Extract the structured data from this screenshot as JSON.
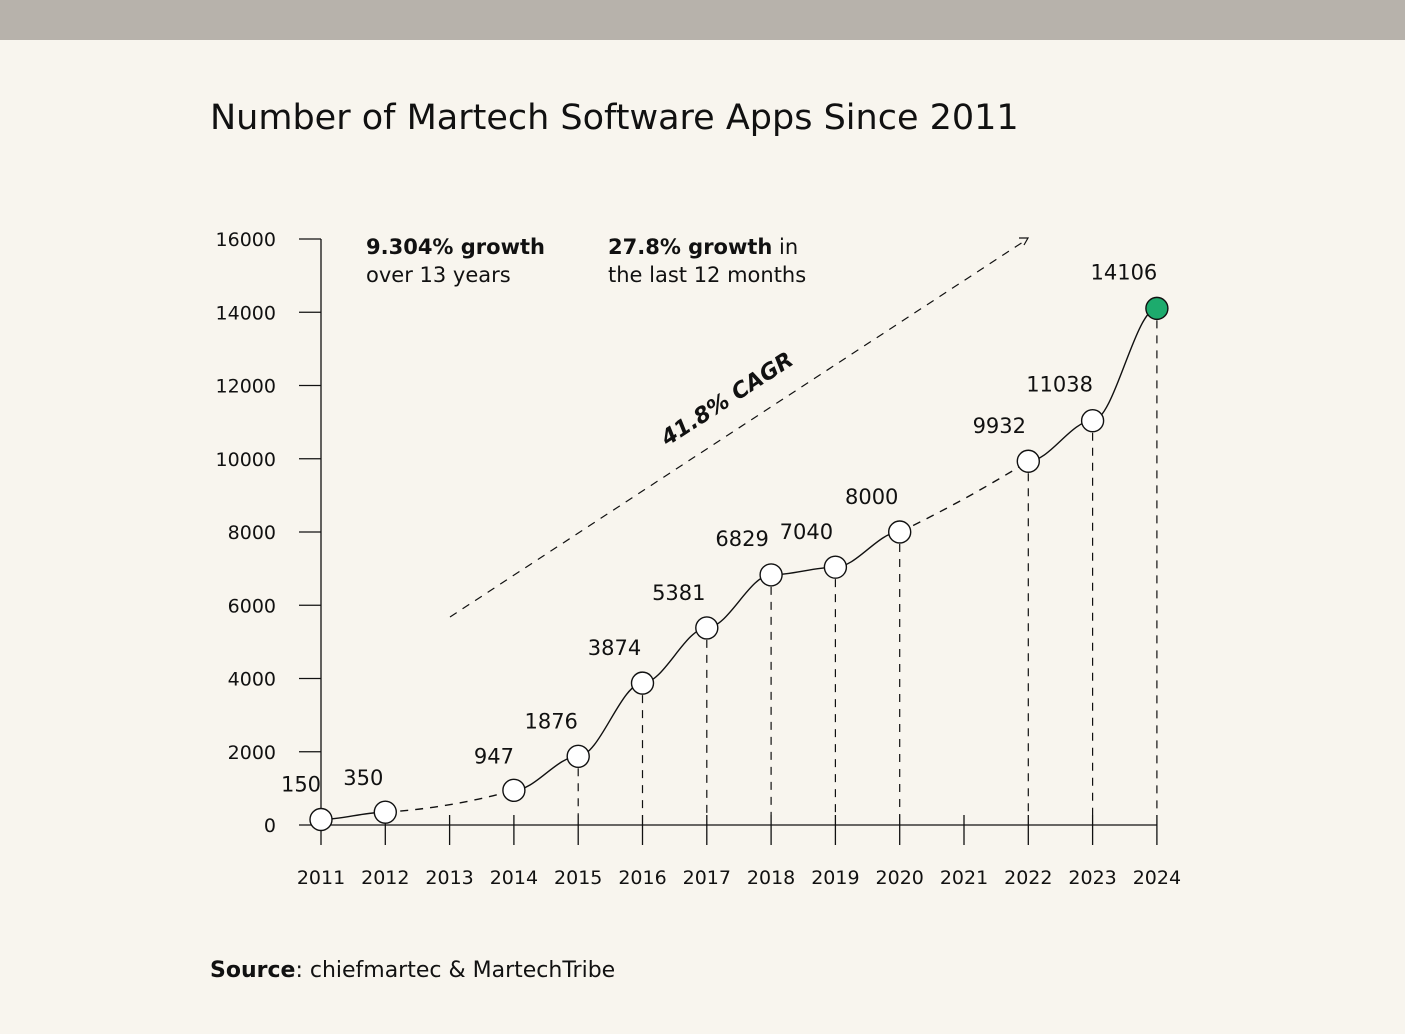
{
  "page": {
    "title": "Number of Martech Software Apps Since 2011",
    "note1": {
      "bold": "9.304% growth",
      "rest": "over 13 years"
    },
    "note2": {
      "bold": "27.8% growth",
      "rest1": " in",
      "rest2": "the last 12 months"
    },
    "cagr_label": "41.8% CAGR",
    "source": {
      "label": "Source",
      "text": ": chiefmartec & MartechTribe"
    },
    "colors": {
      "background": "#f8f5ee",
      "top_bar": "#b7b2ab",
      "highlight": "#1dab6d",
      "ink": "#111111"
    }
  },
  "chart_data": {
    "type": "line",
    "title": "Number of Martech Software Apps Since 2011",
    "xlabel": "",
    "ylabel": "",
    "x": [
      2011,
      2012,
      2013,
      2014,
      2015,
      2016,
      2017,
      2018,
      2019,
      2020,
      2021,
      2022,
      2023,
      2024
    ],
    "x_tick_labels": [
      "2011",
      "2012",
      "2013",
      "2014",
      "2015",
      "2016",
      "2017",
      "2018",
      "2019",
      "2020",
      "2021",
      "2022",
      "2023",
      "2024"
    ],
    "y_ticks": [
      0,
      2000,
      4000,
      6000,
      8000,
      10000,
      12000,
      14000,
      16000
    ],
    "y_tick_labels": [
      "0",
      "2000",
      "4000",
      "6000",
      "8000",
      "10000",
      "12000",
      "14000",
      "16000"
    ],
    "ylim": [
      0,
      16000
    ],
    "grid": false,
    "series": [
      {
        "points": [
          {
            "x": 2011,
            "y": 150,
            "label": "150"
          },
          {
            "x": 2012,
            "y": 350,
            "label": "350"
          },
          {
            "x": 2014,
            "y": 947,
            "label": "947"
          },
          {
            "x": 2015,
            "y": 1876,
            "label": "1876"
          },
          {
            "x": 2016,
            "y": 3874,
            "label": "3874"
          },
          {
            "x": 2017,
            "y": 5381,
            "label": "5381"
          },
          {
            "x": 2018,
            "y": 6829,
            "label": "6829"
          },
          {
            "x": 2019,
            "y": 7040,
            "label": "7040"
          },
          {
            "x": 2020,
            "y": 8000,
            "label": "8000"
          },
          {
            "x": 2022,
            "y": 9932,
            "label": "9932"
          },
          {
            "x": 2023,
            "y": 11038,
            "label": "11038"
          },
          {
            "x": 2024,
            "y": 14106,
            "label": "14106",
            "highlight": true
          }
        ]
      }
    ],
    "annotations": [
      "9.304% growth over 13 years",
      "27.8% growth in the last 12 months",
      "41.8% CAGR"
    ]
  }
}
